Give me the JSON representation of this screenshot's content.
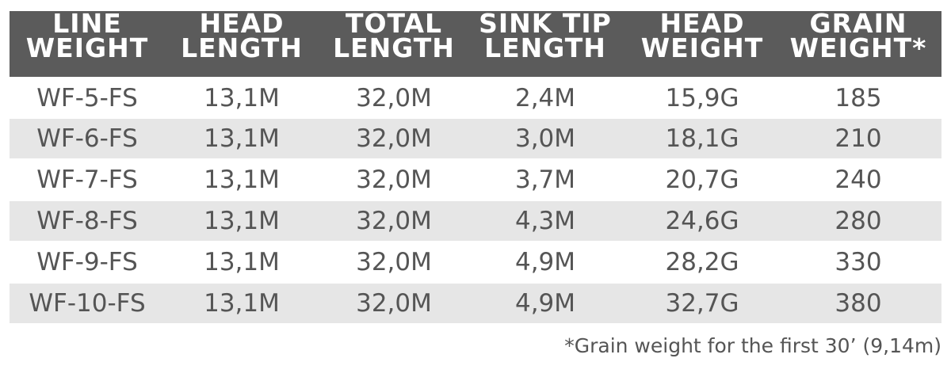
{
  "table": {
    "header": [
      [
        "LINE",
        "WEIGHT"
      ],
      [
        "HEAD",
        "LENGTH"
      ],
      [
        "TOTAL",
        "LENGTH"
      ],
      [
        "SINK TIP",
        "LENGTH"
      ],
      [
        "HEAD",
        "WEIGHT"
      ],
      [
        "GRAIN",
        "WEIGHT*"
      ]
    ],
    "rows": [
      [
        "WF-5-FS",
        "13,1M",
        "32,0M",
        "2,4M",
        "15,9G",
        "185"
      ],
      [
        "WF-6-FS",
        "13,1M",
        "32,0M",
        "3,0M",
        "18,1G",
        "210"
      ],
      [
        "WF-7-FS",
        "13,1M",
        "32,0M",
        "3,7M",
        "20,7G",
        "240"
      ],
      [
        "WF-8-FS",
        "13,1M",
        "32,0M",
        "4,3M",
        "24,6G",
        "280"
      ],
      [
        "WF-9-FS",
        "13,1M",
        "32,0M",
        "4,9M",
        "28,2G",
        "330"
      ],
      [
        "WF-10-FS",
        "13,1M",
        "32,0M",
        "4,9M",
        "32,7G",
        "380"
      ]
    ]
  },
  "footnote": "*Grain weight for the first 30’ (9,14m)"
}
